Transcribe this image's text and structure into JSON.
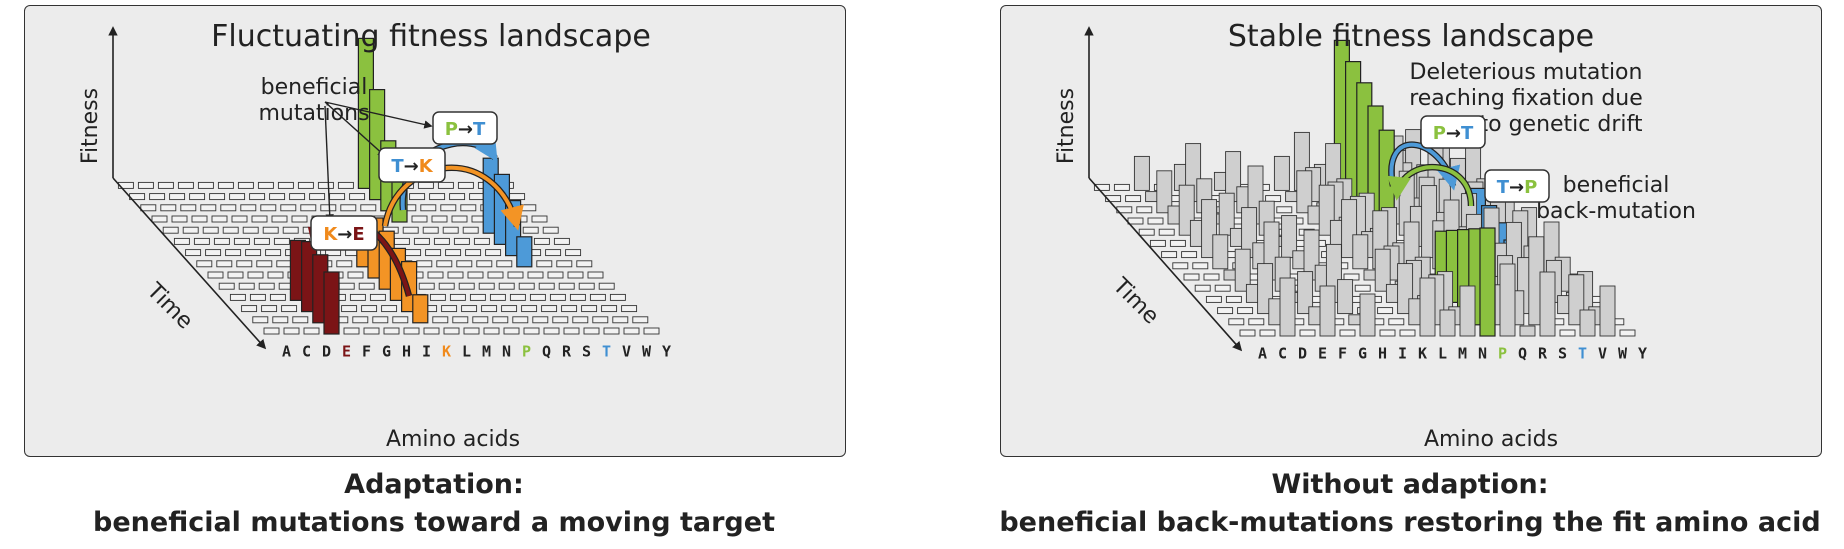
{
  "left": {
    "title": "Fluctuating fitness landscape",
    "y_axis_label": "Fitness",
    "z_axis_label": "Time",
    "x_axis_label": "Amino acids",
    "annotation_line1": "beneficial",
    "annotation_line2": "mutations",
    "caption_line1": "Adaptation:",
    "caption_line2": "beneficial mutations toward a moving target",
    "mutations": [
      {
        "from": "K",
        "to": "E",
        "arrow": "→"
      },
      {
        "from": "T",
        "to": "K",
        "arrow": "→"
      },
      {
        "from": "P",
        "to": "T",
        "arrow": "→"
      }
    ],
    "highlighted_aa": {
      "E": "#7b1416",
      "K": "#f08a1c",
      "P": "#8bc13f",
      "T": "#3f8fd2"
    }
  },
  "right": {
    "title": "Stable fitness landscape",
    "y_axis_label": "Fitness",
    "z_axis_label": "Time",
    "x_axis_label": "Amino acids",
    "deleterious_line1": "Deleterious mutation",
    "deleterious_line2": "reaching fixation due",
    "deleterious_line3": "to genetic drift",
    "back_line1": "beneficial",
    "back_line2": "back-mutation",
    "caption_line1": "Without adaption:",
    "caption_line2": "beneficial back-mutations restoring the fit amino acid",
    "mutations": [
      {
        "from": "P",
        "to": "T",
        "arrow": "→"
      },
      {
        "from": "T",
        "to": "P",
        "arrow": "→"
      }
    ],
    "highlighted_aa": {
      "P": "#8bc13f",
      "T": "#3f8fd2"
    }
  },
  "amino_acids": [
    "A",
    "C",
    "D",
    "E",
    "F",
    "G",
    "H",
    "I",
    "K",
    "L",
    "M",
    "N",
    "P",
    "Q",
    "R",
    "S",
    "T",
    "V",
    "W",
    "Y"
  ],
  "colors": {
    "green": "#8bc13f",
    "blue": "#4d9ad8",
    "orange": "#f39425",
    "darkred": "#7b1416",
    "gray": "#cfcfcf"
  }
}
